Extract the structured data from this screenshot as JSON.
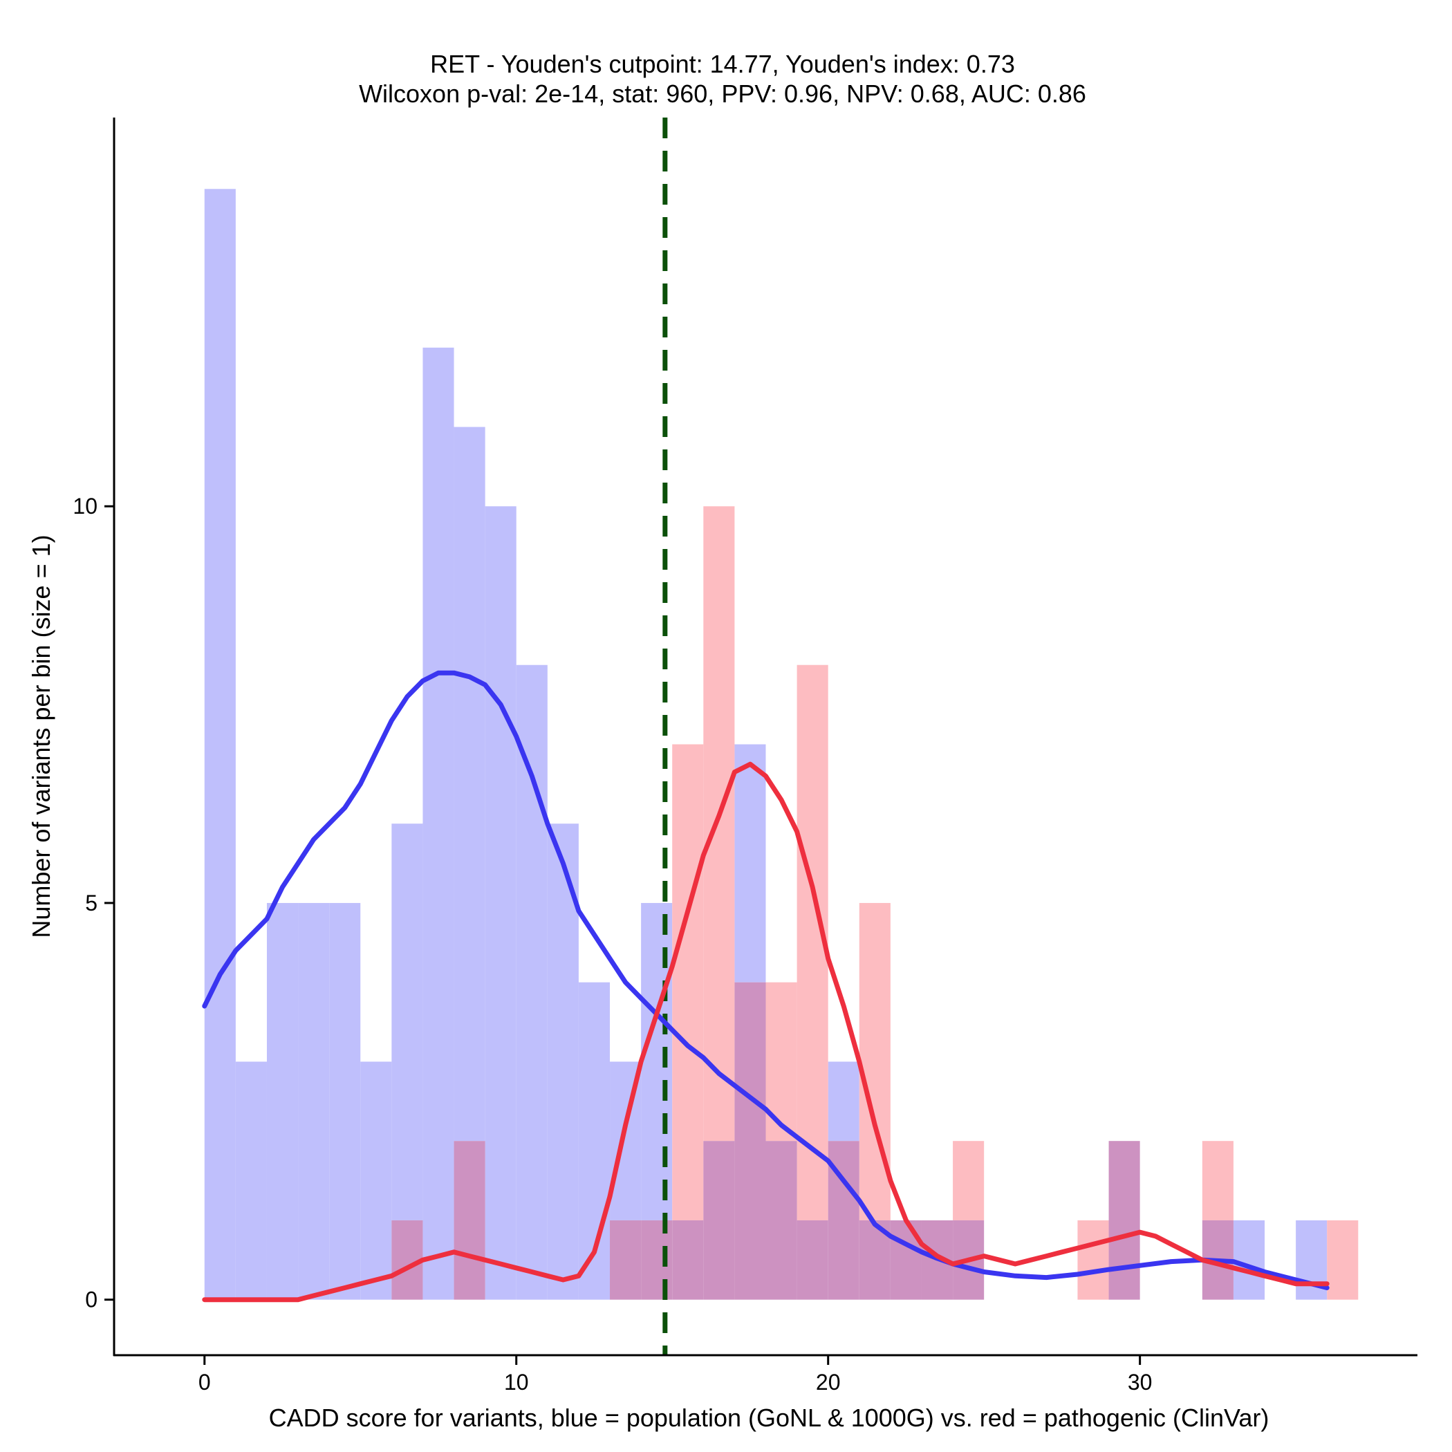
{
  "chart_data": {
    "type": "bar",
    "title": "RET - Youden's cutpoint: 14.77, Youden's index: 0.73",
    "subtitle": "Wilcoxon p-val: 2e-14, stat: 960, PPV: 0.96, NPV: 0.68, AUC: 0.86",
    "xlabel": "CADD score for variants, blue = population (GoNL & 1000G) vs. red = pathogenic (ClinVar)",
    "ylabel": "Number of variants per bin (size = 1)",
    "xlim": [
      -2.9,
      38.9
    ],
    "ylim": [
      -0.7,
      14.9
    ],
    "x_ticks": [
      0,
      10,
      20,
      30
    ],
    "x_tick_labels": [
      "0",
      "10",
      "20",
      "30"
    ],
    "y_ticks": [
      0,
      5,
      10
    ],
    "y_tick_labels": [
      "0",
      "5",
      "10"
    ],
    "bin_width": 1,
    "cutpoint": 14.77,
    "colors": {
      "population_bar": "#bfbffc",
      "pathogenic_bar": "#fdbcc1",
      "overlap_bar": "#cd92c1",
      "population_line": "#3a35f0",
      "pathogenic_line": "#ee2f3e",
      "cutpoint_line": "#0b5009"
    },
    "series": [
      {
        "name": "population",
        "kind": "histogram",
        "bin_starts": [
          0,
          1,
          2,
          3,
          4,
          5,
          6,
          7,
          8,
          9,
          10,
          11,
          12,
          13,
          14,
          15,
          16,
          17,
          18,
          19,
          20,
          21,
          22,
          23,
          24,
          25,
          26,
          27,
          28,
          29,
          30,
          31,
          32,
          33,
          34,
          35,
          36
        ],
        "values": [
          14,
          3,
          5,
          5,
          5,
          3,
          6,
          12,
          11,
          10,
          8,
          6,
          4,
          3,
          5,
          1,
          2,
          7,
          2,
          1,
          3,
          1,
          1,
          1,
          1,
          0,
          0,
          0,
          0,
          2,
          0,
          0,
          1,
          1,
          0,
          1,
          0
        ]
      },
      {
        "name": "pathogenic",
        "kind": "histogram",
        "bin_starts": [
          0,
          1,
          2,
          3,
          4,
          5,
          6,
          7,
          8,
          9,
          10,
          11,
          12,
          13,
          14,
          15,
          16,
          17,
          18,
          19,
          20,
          21,
          22,
          23,
          24,
          25,
          26,
          27,
          28,
          29,
          30,
          31,
          32,
          33,
          34,
          35,
          36
        ],
        "values": [
          0,
          0,
          0,
          0,
          0,
          0,
          1,
          0,
          2,
          0,
          0,
          0,
          0,
          1,
          1,
          7,
          10,
          4,
          4,
          8,
          2,
          5,
          1,
          1,
          2,
          0,
          0,
          0,
          1,
          2,
          0,
          0,
          2,
          0,
          0,
          0,
          1
        ]
      },
      {
        "name": "population density",
        "kind": "line",
        "x": [
          0,
          0.5,
          1,
          1.5,
          2,
          2.5,
          3,
          3.5,
          4,
          4.5,
          5,
          5.5,
          6,
          6.5,
          7,
          7.5,
          8,
          8.5,
          9,
          9.5,
          10,
          10.5,
          11,
          11.5,
          12,
          12.5,
          13,
          13.5,
          14,
          14.5,
          15,
          15.5,
          16,
          16.5,
          17,
          17.5,
          18,
          18.5,
          19,
          19.5,
          20,
          20.5,
          21,
          21.5,
          22,
          22.5,
          23,
          23.5,
          24,
          24.5,
          25,
          26,
          27,
          28,
          29,
          30,
          31,
          32,
          33,
          34,
          35,
          36
        ],
        "y": [
          3.7,
          4.1,
          4.4,
          4.6,
          4.8,
          5.2,
          5.5,
          5.8,
          6.0,
          6.2,
          6.5,
          6.9,
          7.3,
          7.6,
          7.8,
          7.9,
          7.9,
          7.85,
          7.75,
          7.5,
          7.1,
          6.6,
          6.0,
          5.5,
          4.9,
          4.6,
          4.3,
          4.0,
          3.8,
          3.6,
          3.4,
          3.2,
          3.05,
          2.85,
          2.7,
          2.55,
          2.4,
          2.2,
          2.05,
          1.9,
          1.75,
          1.5,
          1.25,
          0.95,
          0.8,
          0.7,
          0.6,
          0.52,
          0.45,
          0.4,
          0.35,
          0.3,
          0.28,
          0.32,
          0.38,
          0.43,
          0.48,
          0.5,
          0.48,
          0.35,
          0.25,
          0.15
        ]
      },
      {
        "name": "pathogenic density",
        "kind": "line",
        "x": [
          0,
          1,
          2,
          3,
          3.5,
          4,
          4.5,
          5,
          5.5,
          6,
          6.5,
          7,
          7.5,
          8,
          8.5,
          9,
          9.5,
          10,
          10.5,
          11,
          11.5,
          12,
          12.5,
          13,
          13.5,
          14,
          14.5,
          15,
          15.5,
          16,
          16.5,
          17,
          17.5,
          18,
          18.5,
          19,
          19.5,
          20,
          20.5,
          21,
          21.5,
          22,
          22.5,
          23,
          23.5,
          24,
          24.5,
          25,
          25.5,
          26,
          26.5,
          27,
          27.5,
          28,
          28.5,
          29,
          29.5,
          30,
          30.5,
          31,
          31.5,
          32,
          32.5,
          33,
          33.5,
          34,
          34.5,
          35,
          35.5,
          36
        ],
        "y": [
          0,
          0,
          0,
          0,
          0.05,
          0.1,
          0.15,
          0.2,
          0.25,
          0.3,
          0.4,
          0.5,
          0.55,
          0.6,
          0.55,
          0.5,
          0.45,
          0.4,
          0.35,
          0.3,
          0.25,
          0.3,
          0.6,
          1.3,
          2.2,
          3.0,
          3.6,
          4.2,
          4.9,
          5.6,
          6.1,
          6.65,
          6.75,
          6.6,
          6.3,
          5.9,
          5.2,
          4.3,
          3.7,
          3.0,
          2.2,
          1.5,
          1.0,
          0.7,
          0.55,
          0.45,
          0.5,
          0.55,
          0.5,
          0.45,
          0.5,
          0.55,
          0.6,
          0.65,
          0.7,
          0.75,
          0.8,
          0.85,
          0.8,
          0.7,
          0.6,
          0.5,
          0.45,
          0.4,
          0.35,
          0.3,
          0.25,
          0.2,
          0.2,
          0.2
        ]
      }
    ]
  }
}
